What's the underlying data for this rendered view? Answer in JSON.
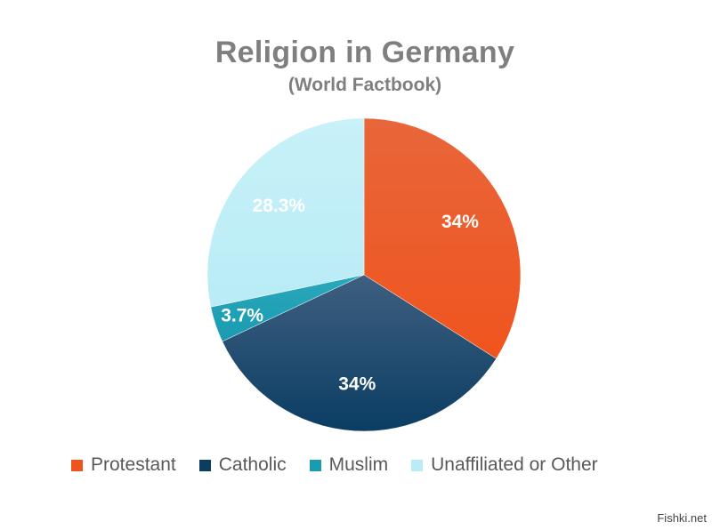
{
  "chart_data": {
    "type": "pie",
    "title": "Religion in Germany",
    "subtitle": "(World Factbook)",
    "legend_position": "bottom",
    "slices": [
      {
        "name": "Protestant",
        "value": 34,
        "label": "34%",
        "color": "#f0541e",
        "color_light": "#e8663a",
        "label_color": "#ffffff"
      },
      {
        "name": "Catholic",
        "value": 34,
        "label": "34%",
        "color": "#0b3d63",
        "color_light": "#3e5f80",
        "label_color": "#ffffff"
      },
      {
        "name": "Muslim",
        "value": 3.7,
        "label": "3.7%",
        "color": "#1a9bb0",
        "color_light": "#2aa8bc",
        "label_color": "#ffffff"
      },
      {
        "name": "Unaffiliated or Other",
        "value": 28.3,
        "label": "28.3%",
        "color": "#b9ecf6",
        "color_light": "#c8f1f8",
        "label_color": "#ffffff"
      }
    ]
  },
  "watermark": "Fishki.net"
}
